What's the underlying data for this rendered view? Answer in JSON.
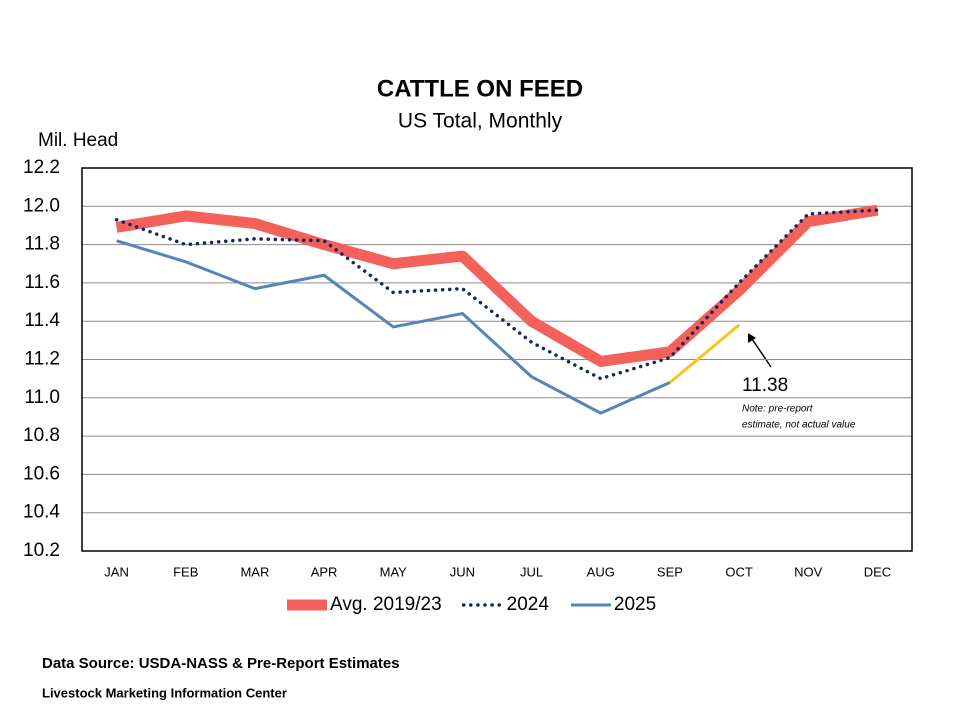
{
  "chart_data": {
    "type": "line",
    "title": "CATTLE ON FEED",
    "subtitle": "US Total, Monthly",
    "y_label": "Mil. Head",
    "categories": [
      "JAN",
      "FEB",
      "MAR",
      "APR",
      "MAY",
      "JUN",
      "JUL",
      "AUG",
      "SEP",
      "OCT",
      "NOV",
      "DEC"
    ],
    "series": [
      {
        "name": "Avg. 2019/23",
        "color": "#f4605a",
        "style": "thick",
        "values": [
          11.89,
          11.95,
          11.91,
          11.8,
          11.7,
          11.74,
          11.4,
          11.19,
          11.24,
          11.56,
          11.92,
          11.98
        ]
      },
      {
        "name": "2024",
        "color": "#16275a",
        "style": "dotted",
        "values": [
          11.93,
          11.8,
          11.83,
          11.82,
          11.55,
          11.57,
          11.29,
          11.1,
          11.21,
          11.6,
          11.96,
          11.98
        ]
      },
      {
        "name": "2025",
        "color": "#5585b8",
        "style": "solid",
        "values": [
          11.82,
          11.71,
          11.57,
          11.64,
          11.37,
          11.44,
          11.11,
          10.92,
          11.08,
          null,
          null,
          null
        ]
      }
    ],
    "estimate": {
      "color": "#f5c518",
      "values": [
        null,
        null,
        null,
        null,
        null,
        null,
        null,
        null,
        null,
        11.38,
        null,
        null
      ]
    },
    "note": [
      "Note: pre-report",
      "estimate, not actual value"
    ],
    "ylim": [
      10.2,
      12.2
    ],
    "yticks": [
      10.2,
      10.4,
      10.6,
      10.8,
      {
        "value": 11.0,
        "label": "11.0"
      },
      11.2,
      11.4,
      11.6,
      11.8,
      {
        "value": 12.0,
        "label": "12.0"
      },
      12.2
    ],
    "grid": true,
    "legend": "bottom",
    "source": "Data Source:  USDA-NASS & Pre-Report Estimates",
    "credit": "Livestock Marketing Information Center"
  }
}
